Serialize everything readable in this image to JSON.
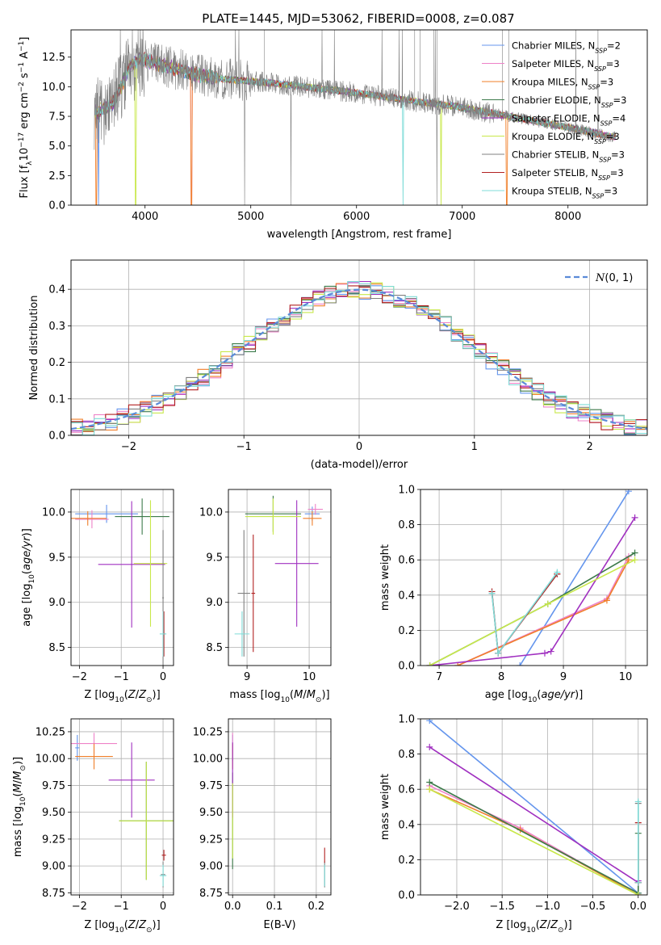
{
  "title": "PLATE=1445, MJD=53062, FIBERID=0008, z=0.087",
  "colors": {
    "Chabrier MILES": "#6495ed",
    "Salpeter MILES": "#ee82c8",
    "Kroupa MILES": "#f07f2a",
    "Chabrier ELODIE": "#3c7a4a",
    "Salpeter ELODIE": "#a030c0",
    "Kroupa ELODIE": "#c8e84a",
    "Chabrier STELIB": "#808080",
    "Salpeter STELIB": "#b22222",
    "Kroupa STELIB": "#7fdcd8"
  },
  "legend_labels": [
    "Chabrier MILES, N_SSP=2",
    "Salpeter MILES, N_SSP=3",
    "Kroupa MILES, N_SSP=3",
    "Chabrier ELODIE, N_SSP=3",
    "Salpeter ELODIE, N_SSP=4",
    "Kroupa ELODIE, N_SSP=3",
    "Chabrier STELIB, N_SSP=3",
    "Salpeter STELIB, N_SSP=3",
    "Kroupa STELIB, N_SSP=3"
  ],
  "chart_data": [
    {
      "id": "spectrum",
      "type": "line",
      "title": "PLATE=1445, MJD=53062, FIBERID=0008, z=0.087",
      "xlabel": "wavelength [Angstrom, rest frame]",
      "ylabel": "Flux [f_λ 10^-17 erg cm^-2 s^-1 A^-1]",
      "xlim": [
        3300,
        8750
      ],
      "ylim": [
        0,
        14.8
      ],
      "xticks": [
        4000,
        5000,
        6000,
        7000,
        8000
      ],
      "yticks": [
        0.0,
        2.5,
        5.0,
        7.5,
        10.0,
        12.5
      ],
      "data_trend": {
        "x": [
          3550,
          3700,
          3850,
          3950,
          4100,
          4300,
          4500,
          4800,
          5100,
          5400,
          5700,
          6000,
          6300,
          6600,
          6900,
          7200,
          7500,
          7800,
          8100,
          8400
        ],
        "y": [
          7.8,
          8.6,
          11.6,
          12.4,
          12.0,
          11.5,
          11.0,
          10.6,
          10.4,
          10.1,
          9.8,
          9.5,
          9.1,
          8.7,
          8.4,
          7.9,
          7.4,
          6.9,
          6.4,
          5.8
        ]
      }
    },
    {
      "id": "residual_histogram",
      "type": "step",
      "xlabel": "(data-model)/error",
      "ylabel": "Normed distribution",
      "xlim": [
        -2.5,
        2.5
      ],
      "ylim": [
        0,
        0.48
      ],
      "xticks": [
        -2,
        -1,
        0,
        1,
        2
      ],
      "yticks": [
        0.0,
        0.1,
        0.2,
        0.3,
        0.4
      ],
      "reference_label": "N(0,1)",
      "bin_width": 0.1
    },
    {
      "id": "age_vs_Z",
      "type": "errorbar",
      "xlabel": "Z [log10(Z/Z⊙)]",
      "ylabel": "age [log10(age/yr)]",
      "xlim": [
        -2.2,
        0.25
      ],
      "ylim": [
        8.3,
        10.25
      ],
      "xticks": [
        -2,
        -1,
        0
      ],
      "yticks": [
        8.5,
        9.0,
        9.5,
        10.0
      ],
      "points": [
        {
          "s": "Chabrier MILES",
          "x": -1.35,
          "y": 9.98,
          "xe": 0.75,
          "ye": 0.1
        },
        {
          "s": "Salpeter MILES",
          "x": -1.7,
          "y": 9.92,
          "xe": 0.4,
          "ye": 0.1
        },
        {
          "s": "Kroupa MILES",
          "x": -1.8,
          "y": 9.93,
          "xe": 0.45,
          "ye": 0.08
        },
        {
          "s": "Chabrier ELODIE",
          "x": -0.5,
          "y": 9.95,
          "xe": 0.65,
          "ye": 0.2
        },
        {
          "s": "Salpeter ELODIE",
          "x": -0.75,
          "y": 9.42,
          "xe": 0.8,
          "ye": 0.7
        },
        {
          "s": "Kroupa ELODIE",
          "x": -0.3,
          "y": 9.43,
          "xe": 0.4,
          "ye": 0.7
        },
        {
          "s": "Chabrier STELIB",
          "x": 0.0,
          "y": 9.05,
          "xe": 0.02,
          "ye": 0.75
        },
        {
          "s": "Salpeter STELIB",
          "x": 0.02,
          "y": 8.65,
          "xe": 0.03,
          "ye": 0.25
        },
        {
          "s": "Kroupa STELIB",
          "x": 0.0,
          "y": 8.65,
          "xe": 0.08,
          "ye": 0.25
        }
      ]
    },
    {
      "id": "age_vs_mass",
      "type": "errorbar",
      "xlabel": "mass [log10(M/M⊙)]",
      "xlim": [
        8.7,
        10.35
      ],
      "ylim": [
        8.3,
        10.25
      ],
      "xticks": [
        9,
        10
      ],
      "yticks": [
        8.5,
        9.0,
        9.5,
        10.0
      ],
      "points": [
        {
          "s": "Chabrier MILES",
          "x": 10.05,
          "y": 9.98,
          "xe": 0.12,
          "ye": 0.08
        },
        {
          "s": "Salpeter MILES",
          "x": 10.1,
          "y": 10.03,
          "xe": 0.12,
          "ye": 0.06
        },
        {
          "s": "Kroupa MILES",
          "x": 10.05,
          "y": 9.93,
          "xe": 0.15,
          "ye": 0.08
        },
        {
          "s": "Chabrier ELODIE",
          "x": 9.42,
          "y": 9.98,
          "xe": 0.45,
          "ye": 0.2
        },
        {
          "s": "Salpeter ELODIE",
          "x": 9.8,
          "y": 9.43,
          "xe": 0.35,
          "ye": 0.7
        },
        {
          "s": "Kroupa ELODIE",
          "x": 9.42,
          "y": 9.95,
          "xe": 0.45,
          "ye": 0.2
        },
        {
          "s": "Chabrier STELIB",
          "x": 8.95,
          "y": 9.1,
          "xe": 0.1,
          "ye": 0.7
        },
        {
          "s": "Salpeter STELIB",
          "x": 9.1,
          "y": 9.1,
          "xe": 0.03,
          "ye": 0.65
        },
        {
          "s": "Kroupa STELIB",
          "x": 8.92,
          "y": 8.65,
          "xe": 0.12,
          "ye": 0.25
        }
      ]
    },
    {
      "id": "mass_weight_vs_age",
      "type": "line",
      "xlabel": "age [log10(age/yr)]",
      "ylabel": "mass weight",
      "xlim": [
        6.7,
        10.35
      ],
      "ylim": [
        0,
        1.0
      ],
      "xticks": [
        7,
        8,
        9,
        10
      ],
      "yticks": [
        0.0,
        0.2,
        0.4,
        0.6,
        0.8,
        1.0
      ],
      "series": [
        {
          "s": "Chabrier MILES",
          "x": [
            8.3,
            10.05
          ],
          "y": [
            0.0,
            0.99
          ]
        },
        {
          "s": "Salpeter MILES",
          "x": [
            7.3,
            9.7,
            10.05
          ],
          "y": [
            0.0,
            0.38,
            0.62
          ]
        },
        {
          "s": "Kroupa MILES",
          "x": [
            7.3,
            9.7,
            10.05
          ],
          "y": [
            0.0,
            0.37,
            0.6
          ]
        },
        {
          "s": "Chabrier ELODIE",
          "x": [
            6.85,
            8.75,
            10.15
          ],
          "y": [
            0.0,
            0.35,
            0.64
          ]
        },
        {
          "s": "Salpeter ELODIE",
          "x": [
            6.85,
            8.7,
            8.8,
            10.15
          ],
          "y": [
            0.0,
            0.07,
            0.08,
            0.84
          ]
        },
        {
          "s": "Kroupa ELODIE",
          "x": [
            6.85,
            8.75,
            10.15
          ],
          "y": [
            0.0,
            0.35,
            0.6
          ]
        },
        {
          "s": "Chabrier STELIB",
          "x": [
            7.85,
            7.95,
            8.9
          ],
          "y": [
            0.41,
            0.07,
            0.52
          ]
        },
        {
          "s": "Salpeter STELIB",
          "x": [
            7.85,
            7.95,
            8.9
          ],
          "y": [
            0.42,
            0.07,
            0.52
          ]
        },
        {
          "s": "Kroupa STELIB",
          "x": [
            7.85,
            7.95,
            8.9
          ],
          "y": [
            0.41,
            0.07,
            0.53
          ]
        }
      ]
    },
    {
      "id": "mass_vs_Z",
      "type": "errorbar",
      "xlabel": "Z [log10(Z/Z⊙)]",
      "ylabel": "mass [log10(M/M⊙)]",
      "xlim": [
        -2.2,
        0.25
      ],
      "ylim": [
        8.73,
        10.37
      ],
      "xticks": [
        -2,
        -1,
        0
      ],
      "yticks": [
        8.75,
        9.0,
        9.25,
        9.5,
        9.75,
        10.0,
        10.25
      ],
      "points": [
        {
          "s": "Chabrier MILES",
          "x": -2.05,
          "y": 10.1,
          "xe": 0.05,
          "ye": 0.12
        },
        {
          "s": "Salpeter MILES",
          "x": -1.65,
          "y": 10.14,
          "xe": 0.55,
          "ye": 0.1
        },
        {
          "s": "Kroupa MILES",
          "x": -1.65,
          "y": 10.02,
          "xe": 0.45,
          "ye": 0.12
        },
        {
          "s": "Chabrier ELODIE",
          "x": -0.4,
          "y": 9.42,
          "xe": 0.65,
          "ye": 0.55
        },
        {
          "s": "Salpeter ELODIE",
          "x": -0.75,
          "y": 9.8,
          "xe": 0.55,
          "ye": 0.35
        },
        {
          "s": "Kroupa ELODIE",
          "x": -0.4,
          "y": 9.42,
          "xe": 0.65,
          "ye": 0.55
        },
        {
          "s": "Chabrier STELIB",
          "x": 0.0,
          "y": 8.92,
          "xe": 0.05,
          "ye": 0.12
        },
        {
          "s": "Salpeter STELIB",
          "x": 0.02,
          "y": 9.1,
          "xe": 0.05,
          "ye": 0.05
        },
        {
          "s": "Kroupa STELIB",
          "x": 0.0,
          "y": 8.91,
          "xe": 0.08,
          "ye": 0.1
        }
      ]
    },
    {
      "id": "mass_vs_ebv",
      "type": "errorbar",
      "xlabel": "E(B-V)",
      "xlim": [
        -0.01,
        0.235
      ],
      "ylim": [
        8.73,
        10.37
      ],
      "xticks": [
        0.0,
        0.1,
        0.2
      ],
      "yticks": [
        8.75,
        9.0,
        9.25,
        9.5,
        9.75,
        10.0,
        10.25
      ],
      "points": [
        {
          "s": "Chabrier MILES",
          "x": 0.0,
          "y": 10.1,
          "xe": 0.0,
          "ye": 0.12
        },
        {
          "s": "Salpeter MILES",
          "x": 0.0,
          "y": 10.14,
          "xe": 0.0,
          "ye": 0.1
        },
        {
          "s": "Kroupa MILES",
          "x": 0.0,
          "y": 10.02,
          "xe": 0.0,
          "ye": 0.12
        },
        {
          "s": "Chabrier ELODIE",
          "x": 0.0,
          "y": 9.42,
          "xe": 0.0,
          "ye": 0.45
        },
        {
          "s": "Salpeter ELODIE",
          "x": 0.0,
          "y": 9.8,
          "xe": 0.0,
          "ye": 0.35
        },
        {
          "s": "Kroupa ELODIE",
          "x": 0.0,
          "y": 9.42,
          "xe": 0.0,
          "ye": 0.35
        },
        {
          "s": "Chabrier STELIB",
          "x": 0.22,
          "y": 8.92,
          "xe": 0.0,
          "ye": 0.12
        },
        {
          "s": "Salpeter STELIB",
          "x": 0.22,
          "y": 9.1,
          "xe": 0.0,
          "ye": 0.07
        },
        {
          "s": "Kroupa STELIB",
          "x": 0.22,
          "y": 8.91,
          "xe": 0.0,
          "ye": 0.1
        }
      ]
    },
    {
      "id": "mass_weight_vs_Z",
      "type": "line",
      "xlabel": "Z [log10(Z/Z⊙)]",
      "ylabel": "mass weight",
      "xlim": [
        -2.4,
        0.1
      ],
      "ylim": [
        0,
        1.0
      ],
      "xticks": [
        -2.0,
        -1.5,
        -1.0,
        -0.5,
        0.0
      ],
      "yticks": [
        0.0,
        0.2,
        0.4,
        0.6,
        0.8,
        1.0
      ],
      "series": [
        {
          "s": "Chabrier MILES",
          "x": [
            -2.3,
            0.0
          ],
          "y": [
            0.99,
            0.01
          ]
        },
        {
          "s": "Salpeter MILES",
          "x": [
            -2.3,
            -1.3,
            0.0
          ],
          "y": [
            0.62,
            0.38,
            0.0
          ]
        },
        {
          "s": "Kroupa MILES",
          "x": [
            -2.3,
            -1.3,
            0.0
          ],
          "y": [
            0.6,
            0.37,
            0.0
          ]
        },
        {
          "s": "Chabrier ELODIE",
          "x": [
            -2.3,
            0.0,
            0.0
          ],
          "y": [
            0.64,
            0.01,
            0.35
          ]
        },
        {
          "s": "Salpeter ELODIE",
          "x": [
            -2.3,
            0.0,
            0.0
          ],
          "y": [
            0.84,
            0.07,
            0.08
          ]
        },
        {
          "s": "Kroupa ELODIE",
          "x": [
            -2.3,
            0.0
          ],
          "y": [
            0.6,
            0.0
          ]
        },
        {
          "s": "Chabrier STELIB",
          "x": [
            0.0,
            0.0
          ],
          "y": [
            0.07,
            0.52
          ]
        },
        {
          "s": "Salpeter STELIB",
          "x": [
            0.0,
            0.0
          ],
          "y": [
            0.07,
            0.41
          ]
        },
        {
          "s": "Kroupa STELIB",
          "x": [
            0.0,
            0.0
          ],
          "y": [
            0.07,
            0.53
          ]
        }
      ]
    }
  ]
}
